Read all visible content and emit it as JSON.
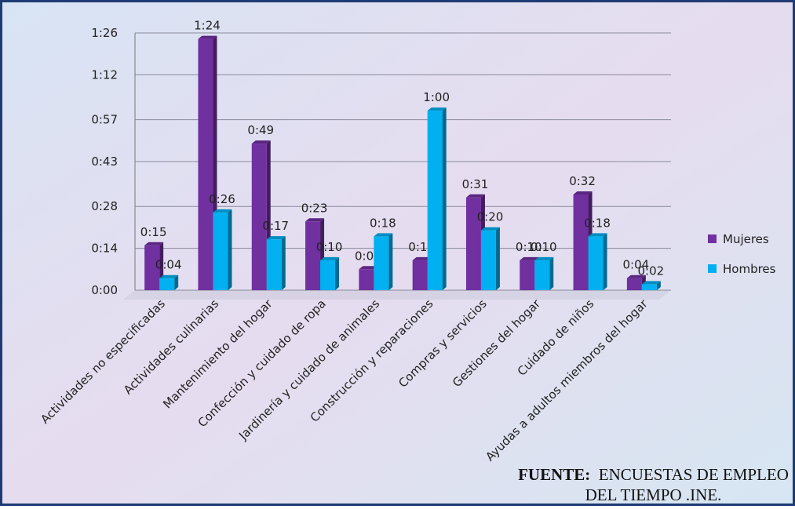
{
  "chart_data": {
    "type": "bar",
    "categories": [
      "Actividades no especificadas",
      "Actividades culinarias",
      "Mantenimiento del hogar",
      "Confección y cuidado de ropa",
      "Jardinería y cuidado de animales",
      "Construcción y reparaciones",
      "Compras y servicios",
      "Gestiones del hogar",
      "Cuidado de niños",
      "Ayudas a adultos miembros del hogar"
    ],
    "series": [
      {
        "name": "Mujeres",
        "color": "#7030a0",
        "values": [
          15,
          84,
          49,
          23,
          7,
          10,
          31,
          10,
          32,
          4
        ],
        "value_labels": [
          "0:15",
          "1:24",
          "0:49",
          "0:23",
          "0:07",
          "0:10",
          "0:31",
          "0:10",
          "0:32",
          "0:04"
        ]
      },
      {
        "name": "Hombres",
        "color": "#00b0f0",
        "values": [
          4,
          26,
          17,
          10,
          18,
          60,
          20,
          10,
          18,
          2
        ],
        "value_labels": [
          "0:04",
          "0:26",
          "0:17",
          "0:10",
          "0:18",
          "1:00",
          "0:20",
          "0:10",
          "0:18",
          "0:02"
        ]
      }
    ],
    "ylim": [
      0,
      86
    ],
    "yticks": [
      {
        "value": 0,
        "label": "0:00"
      },
      {
        "value": 14,
        "label": "0:14"
      },
      {
        "value": 28,
        "label": "0:28"
      },
      {
        "value": 43,
        "label": "0:43"
      },
      {
        "value": 57,
        "label": "0:57"
      },
      {
        "value": 72,
        "label": "1:12"
      },
      {
        "value": 86,
        "label": "1:26"
      }
    ],
    "grid": true,
    "legend": "right",
    "source_label": "FUENTE:",
    "source": "ENCUESTAS DE EMPLEO DEL TIEMPO .INE."
  }
}
